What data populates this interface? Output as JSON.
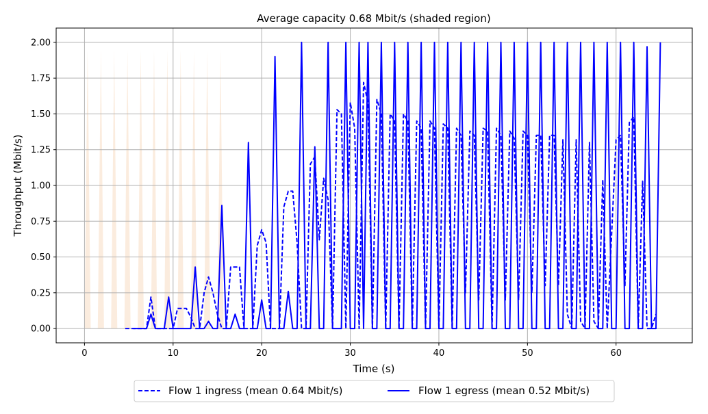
{
  "chart_data": {
    "type": "line",
    "title": "Average capacity 0.68 Mbit/s (shaded region)",
    "xlabel": "Time (s)",
    "ylabel": "Throughput (Mbit/s)",
    "xlim": [
      -3.2,
      68.6
    ],
    "ylim": [
      -0.1,
      2.1
    ],
    "xticks": [
      0,
      10,
      20,
      30,
      40,
      50,
      60
    ],
    "yticks": [
      0.0,
      0.25,
      0.5,
      0.75,
      1.0,
      1.25,
      1.5,
      1.75,
      2.0
    ],
    "xtick_labels": [
      "0",
      "10",
      "20",
      "30",
      "40",
      "50",
      "60"
    ],
    "ytick_labels": [
      "0.00",
      "0.25",
      "0.50",
      "0.75",
      "1.00",
      "1.25",
      "1.50",
      "1.75",
      "2.00"
    ],
    "grid": true,
    "legend_position": "bottom-center-outside",
    "capacity": {
      "color": "#f9e6d3",
      "period_s": 1.5,
      "start_s": 0.0,
      "end_s": 15.5,
      "peak_mbit": 1.95
    },
    "series": [
      {
        "name": "Flow 1 ingress (mean 0.64 Mbit/s)",
        "style": "dashed",
        "color": "#0000ff",
        "points": [
          [
            4.6,
            0
          ],
          [
            5.5,
            0
          ],
          [
            6.5,
            0
          ],
          [
            7.0,
            0
          ],
          [
            7.5,
            0.22
          ],
          [
            8.0,
            0
          ],
          [
            9.0,
            0
          ],
          [
            9.5,
            0
          ],
          [
            10.0,
            0
          ],
          [
            10.5,
            0.14
          ],
          [
            11.0,
            0.14
          ],
          [
            11.5,
            0.14
          ],
          [
            12.0,
            0.08
          ],
          [
            12.5,
            0
          ],
          [
            13.0,
            0
          ],
          [
            13.5,
            0.25
          ],
          [
            14.0,
            0.36
          ],
          [
            14.5,
            0.25
          ],
          [
            15.0,
            0.1
          ],
          [
            15.5,
            0
          ],
          [
            16.0,
            0
          ],
          [
            16.5,
            0.43
          ],
          [
            17.0,
            0.43
          ],
          [
            17.5,
            0.43
          ],
          [
            18.0,
            0
          ],
          [
            19.0,
            0
          ],
          [
            19.5,
            0.58
          ],
          [
            20.0,
            0.69
          ],
          [
            20.5,
            0.6
          ],
          [
            21.0,
            0
          ],
          [
            21.5,
            0
          ],
          [
            22.0,
            0
          ],
          [
            22.5,
            0.85
          ],
          [
            23.0,
            0.96
          ],
          [
            23.5,
            0.96
          ],
          [
            24.0,
            0.6
          ],
          [
            24.5,
            0
          ],
          [
            25.0,
            0
          ],
          [
            25.5,
            1.15
          ],
          [
            26.0,
            1.2
          ],
          [
            26.5,
            0.62
          ],
          [
            27.0,
            1.05
          ],
          [
            27.5,
            0.9
          ],
          [
            28.0,
            0
          ],
          [
            28.5,
            1.53
          ],
          [
            29.0,
            1.5
          ],
          [
            29.5,
            0
          ],
          [
            30.0,
            1.58
          ],
          [
            30.5,
            1.4
          ],
          [
            31.0,
            0
          ],
          [
            31.5,
            1.72
          ],
          [
            32.0,
            1.58
          ],
          [
            32.5,
            0
          ],
          [
            33.0,
            1.6
          ],
          [
            33.5,
            1.5
          ],
          [
            34.0,
            0
          ],
          [
            34.5,
            1.5
          ],
          [
            35.0,
            1.45
          ],
          [
            35.5,
            0
          ],
          [
            36.0,
            1.5
          ],
          [
            36.5,
            1.45
          ],
          [
            37.0,
            0
          ],
          [
            37.5,
            1.45
          ],
          [
            38.0,
            1.4
          ],
          [
            38.5,
            0
          ],
          [
            39.0,
            1.45
          ],
          [
            39.5,
            1.4
          ],
          [
            40.0,
            0
          ],
          [
            40.5,
            1.43
          ],
          [
            41.0,
            1.4
          ],
          [
            41.5,
            0
          ],
          [
            42.0,
            1.4
          ],
          [
            42.5,
            1.35
          ],
          [
            43.0,
            0.25
          ],
          [
            43.5,
            1.38
          ],
          [
            44.0,
            1.35
          ],
          [
            44.5,
            0.2
          ],
          [
            45.0,
            1.4
          ],
          [
            45.5,
            1.38
          ],
          [
            46.0,
            0
          ],
          [
            46.5,
            1.4
          ],
          [
            47.0,
            1.35
          ],
          [
            47.5,
            0.2
          ],
          [
            48.0,
            1.38
          ],
          [
            48.5,
            1.33
          ],
          [
            49.0,
            0.2
          ],
          [
            49.5,
            1.38
          ],
          [
            50.0,
            1.35
          ],
          [
            50.5,
            0.25
          ],
          [
            51.0,
            1.35
          ],
          [
            51.5,
            1.35
          ],
          [
            52.0,
            0.3
          ],
          [
            52.5,
            1.35
          ],
          [
            53.0,
            1.35
          ],
          [
            53.5,
            0.3
          ],
          [
            54.0,
            1.32
          ],
          [
            54.5,
            0.1
          ],
          [
            55.0,
            0
          ],
          [
            55.5,
            1.32
          ],
          [
            56.0,
            0.05
          ],
          [
            56.5,
            0
          ],
          [
            57.0,
            1.3
          ],
          [
            57.5,
            0.05
          ],
          [
            58.0,
            0
          ],
          [
            58.5,
            1.04
          ],
          [
            59.0,
            0
          ],
          [
            60.0,
            1.32
          ],
          [
            60.5,
            1.35
          ],
          [
            61.0,
            0.3
          ],
          [
            61.5,
            1.44
          ],
          [
            62.0,
            1.48
          ],
          [
            62.5,
            0
          ],
          [
            63.0,
            1.03
          ],
          [
            63.5,
            0
          ],
          [
            64.0,
            0
          ],
          [
            64.5,
            0.1
          ]
        ]
      },
      {
        "name": "Flow 1 egress (mean 0.52 Mbit/s)",
        "style": "solid",
        "color": "#0000ff",
        "points": [
          [
            5.5,
            0
          ],
          [
            6.5,
            0
          ],
          [
            7.0,
            0
          ],
          [
            7.5,
            0.1
          ],
          [
            8.0,
            0
          ],
          [
            9.0,
            0
          ],
          [
            9.5,
            0.22
          ],
          [
            10.0,
            0
          ],
          [
            11.0,
            0
          ],
          [
            12.0,
            0
          ],
          [
            12.5,
            0.43
          ],
          [
            13.0,
            0
          ],
          [
            13.5,
            0
          ],
          [
            14.0,
            0.05
          ],
          [
            14.5,
            0
          ],
          [
            15.0,
            0
          ],
          [
            15.5,
            0.86
          ],
          [
            16.0,
            0
          ],
          [
            16.5,
            0
          ],
          [
            17.0,
            0.1
          ],
          [
            17.5,
            0
          ],
          [
            18.0,
            0
          ],
          [
            18.5,
            1.3
          ],
          [
            19.0,
            0
          ],
          [
            19.5,
            0
          ],
          [
            20.0,
            0.2
          ],
          [
            20.5,
            0
          ],
          [
            21.0,
            0
          ],
          [
            21.5,
            1.9
          ],
          [
            22.0,
            0
          ],
          [
            22.5,
            0
          ],
          [
            23.0,
            0.26
          ],
          [
            23.5,
            0
          ],
          [
            24.0,
            0
          ],
          [
            24.5,
            2.0
          ],
          [
            25.0,
            0
          ],
          [
            25.5,
            0
          ],
          [
            26.0,
            1.27
          ],
          [
            26.5,
            0
          ],
          [
            27.0,
            0
          ],
          [
            27.5,
            2.0
          ],
          [
            28.0,
            0
          ],
          [
            29.0,
            0
          ],
          [
            29.5,
            2.0
          ],
          [
            30.0,
            0
          ],
          [
            30.5,
            0
          ],
          [
            31.0,
            2.0
          ],
          [
            31.5,
            0
          ],
          [
            32.0,
            2.0
          ],
          [
            32.5,
            0
          ],
          [
            33.0,
            0
          ],
          [
            33.5,
            2.0
          ],
          [
            34.0,
            0
          ],
          [
            34.5,
            0
          ],
          [
            35.0,
            2.0
          ],
          [
            35.5,
            0
          ],
          [
            36.0,
            0
          ],
          [
            36.5,
            2.0
          ],
          [
            37.0,
            0
          ],
          [
            37.5,
            0
          ],
          [
            38.0,
            2.0
          ],
          [
            38.5,
            0
          ],
          [
            39.0,
            0
          ],
          [
            39.5,
            2.0
          ],
          [
            40.0,
            0
          ],
          [
            40.5,
            0
          ],
          [
            41.0,
            2.0
          ],
          [
            41.5,
            0
          ],
          [
            42.0,
            0
          ],
          [
            42.5,
            2.0
          ],
          [
            43.0,
            0
          ],
          [
            43.5,
            0
          ],
          [
            44.0,
            2.0
          ],
          [
            44.5,
            0
          ],
          [
            45.0,
            0
          ],
          [
            45.5,
            2.0
          ],
          [
            46.0,
            0
          ],
          [
            46.5,
            0
          ],
          [
            47.0,
            2.0
          ],
          [
            47.5,
            0
          ],
          [
            48.0,
            0
          ],
          [
            48.5,
            2.0
          ],
          [
            49.0,
            0
          ],
          [
            49.5,
            0
          ],
          [
            50.0,
            2.0
          ],
          [
            50.5,
            0
          ],
          [
            51.0,
            0
          ],
          [
            51.5,
            2.0
          ],
          [
            52.0,
            0
          ],
          [
            52.5,
            0
          ],
          [
            53.0,
            2.0
          ],
          [
            53.5,
            0
          ],
          [
            54.0,
            0
          ],
          [
            54.5,
            2.0
          ],
          [
            55.0,
            0
          ],
          [
            55.5,
            0
          ],
          [
            56.0,
            2.0
          ],
          [
            56.5,
            0
          ],
          [
            57.0,
            0
          ],
          [
            57.5,
            2.0
          ],
          [
            58.0,
            0
          ],
          [
            58.5,
            0
          ],
          [
            59.0,
            2.0
          ],
          [
            59.5,
            0
          ],
          [
            60.0,
            0
          ],
          [
            60.5,
            2.0
          ],
          [
            61.0,
            0
          ],
          [
            61.5,
            0
          ],
          [
            62.0,
            2.0
          ],
          [
            62.5,
            0
          ],
          [
            63.0,
            0
          ],
          [
            63.5,
            1.97
          ],
          [
            64.0,
            0
          ],
          [
            64.5,
            0
          ],
          [
            65.0,
            2.0
          ]
        ]
      }
    ]
  }
}
